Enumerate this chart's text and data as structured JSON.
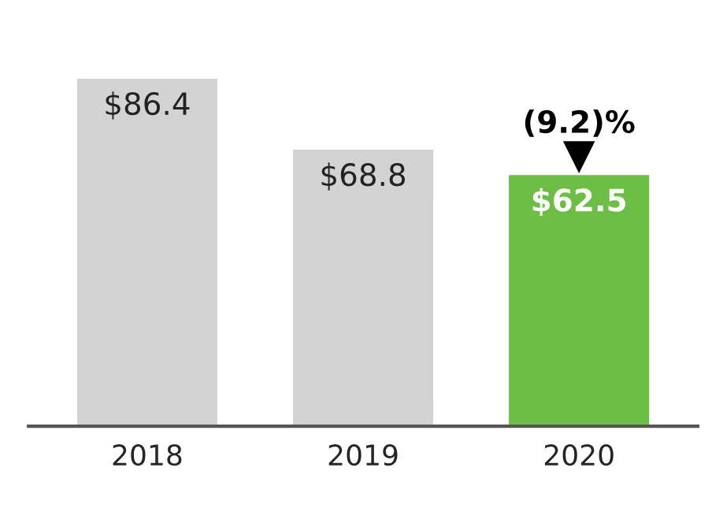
{
  "chart_data": {
    "type": "bar",
    "categories": [
      "2018",
      "2019",
      "2020"
    ],
    "values": [
      86.4,
      68.8,
      62.5
    ],
    "colors": [
      "#d3d3d3",
      "#d3d3d3",
      "#6dbe45"
    ],
    "value_labels": [
      "$86.4",
      "$68.8",
      "$62.5"
    ],
    "annotations": [
      {
        "text": "(9.2)%",
        "x": "2020",
        "y": 62.5
      }
    ],
    "grid": false,
    "legend": false
  }
}
